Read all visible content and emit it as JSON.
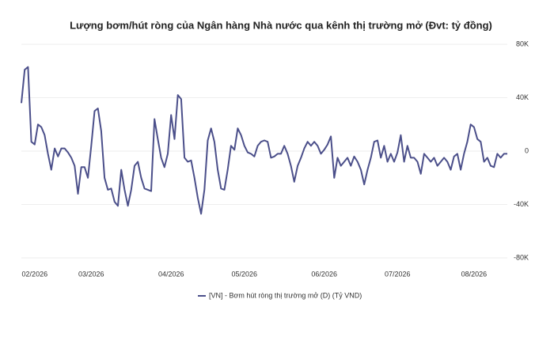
{
  "chart_data": {
    "type": "line",
    "title": "Lượng bơm/hút ròng của Ngân hàng Nhà nước qua kênh thị trường mở (Đvt: tỷ đồng)",
    "categories": [
      null,
      null,
      null,
      null,
      "02/2026",
      null,
      null,
      null,
      null,
      null,
      null,
      null,
      null,
      null,
      null,
      null,
      null,
      null,
      null,
      null,
      null,
      "03/2026",
      null,
      null,
      null,
      null,
      null,
      null,
      null,
      null,
      null,
      null,
      null,
      null,
      null,
      null,
      null,
      null,
      null,
      null,
      null,
      null,
      null,
      null,
      null,
      "04/2026",
      null,
      null,
      null,
      null,
      null,
      null,
      null,
      null,
      null,
      null,
      null,
      null,
      null,
      null,
      null,
      null,
      null,
      null,
      null,
      null,
      null,
      "05/2026",
      null,
      null,
      null,
      null,
      null,
      null,
      null,
      null,
      null,
      null,
      null,
      null,
      null,
      null,
      null,
      null,
      null,
      null,
      null,
      null,
      null,
      null,
      null,
      "06/2026",
      null,
      null,
      null,
      null,
      null,
      null,
      null,
      null,
      null,
      null,
      null,
      null,
      null,
      null,
      null,
      null,
      null,
      null,
      null,
      null,
      null,
      "07/2026",
      null,
      null,
      null,
      null,
      null,
      null,
      null,
      null,
      null,
      null,
      null,
      null,
      null,
      null,
      null,
      null,
      null,
      null,
      null,
      null,
      null,
      null,
      "08/2026",
      null,
      null,
      null,
      null,
      null,
      null,
      null,
      null,
      null,
      null
    ],
    "series": [
      {
        "name": "[VN] - Bơm hút ròng thị trường mở (D) (Tỷ VND)",
        "color": "#4b4f8a",
        "values": [
          36000,
          61000,
          63000,
          7000,
          5000,
          20000,
          18000,
          12000,
          -2000,
          -14000,
          2000,
          -4000,
          2000,
          2000,
          -1000,
          -5000,
          -11000,
          -32000,
          -12000,
          -12000,
          -20000,
          4000,
          30000,
          32000,
          15000,
          -20000,
          -29000,
          -28000,
          -38000,
          -41000,
          -14000,
          -29000,
          -41000,
          -29000,
          -11000,
          -8000,
          -20000,
          -28000,
          -29000,
          -30000,
          24000,
          9000,
          -5000,
          -12000,
          -2000,
          27000,
          9000,
          42000,
          39000,
          -5000,
          -8000,
          -7000,
          -20000,
          -35000,
          -47000,
          -29000,
          8000,
          17000,
          7000,
          -14000,
          -28000,
          -29000,
          -14000,
          4000,
          1000,
          17000,
          12000,
          4000,
          -1000,
          -2000,
          -4000,
          4000,
          7000,
          8000,
          7000,
          -5000,
          -4000,
          -2000,
          -2000,
          4000,
          -2000,
          -11000,
          -23000,
          -11000,
          -5000,
          2000,
          7000,
          4000,
          7000,
          4000,
          -2000,
          1000,
          5000,
          11000,
          -20000,
          -5000,
          -11000,
          -8000,
          -5000,
          -11000,
          -4000,
          -8000,
          -14000,
          -25000,
          -14000,
          -5000,
          7000,
          8000,
          -5000,
          4000,
          -8000,
          -2000,
          -8000,
          -1000,
          12000,
          -8000,
          4000,
          -5000,
          -5000,
          -8000,
          -17000,
          -2000,
          -5000,
          -8000,
          -5000,
          -11000,
          -8000,
          -5000,
          -8000,
          -14000,
          -4000,
          -2000,
          -14000,
          -2000,
          7000,
          20000,
          18000,
          9000,
          7000,
          -8000,
          -5000,
          -11000,
          -12000,
          -2000,
          -5000,
          -2000,
          -2000
        ]
      }
    ],
    "ylim": [
      -80000,
      80000
    ],
    "yticks": [
      {
        "value": 80000,
        "label": "80K"
      },
      {
        "value": 40000,
        "label": "40K"
      },
      0,
      {
        "value": -40000,
        "label": "-40K"
      },
      {
        "value": -80000,
        "label": "-80K"
      }
    ],
    "grid": true
  }
}
